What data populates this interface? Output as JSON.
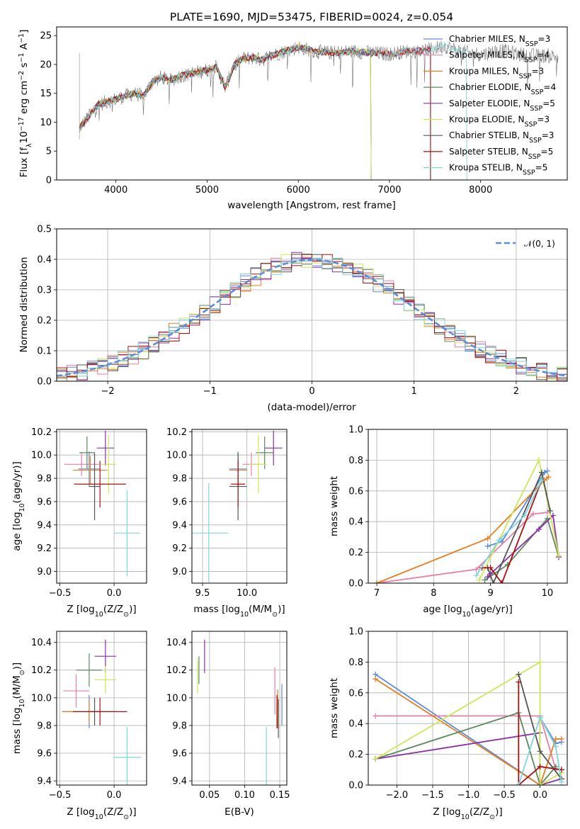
{
  "title": "PLATE=1690, MJD=53475, FIBERID=0024, z=0.054",
  "colors": {
    "chabrier_miles": "#5b8ddb",
    "salpeter_miles": "#e87fa8",
    "kroupa_miles": "#e67e22",
    "chabrier_elodie": "#5d8a5e",
    "salpeter_elodie": "#8e2fa8",
    "kroupa_elodie": "#cfe55a",
    "chabrier_stelib": "#555555",
    "salpeter_stelib": "#aa1111",
    "kroupa_stelib": "#7ed6dc",
    "normal_curve": "#5b8ddb"
  },
  "chart_data": [
    {
      "id": "spectrum",
      "type": "line",
      "xlabel": "wavelength [Angstrom, rest frame]",
      "ylabel": "Flux [f",
      "ylabel_sub": "λ",
      "ylabel_rest": "10",
      "ylabel_sup": "−17",
      "ylabel_unit": " erg cm",
      "ylabel_sup2": "−2",
      "ylabel_unit2": " s",
      "ylabel_sup3": "−1",
      "ylabel_unit3": " A",
      "ylabel_sup4": "−1",
      "ylabel_end": "]",
      "xlim": [
        3350,
        8950
      ],
      "ylim": [
        0,
        26.5
      ],
      "xticks": [
        "4000",
        "5000",
        "6000",
        "7000",
        "8000"
      ],
      "xtick_values": [
        4000,
        5000,
        6000,
        7000,
        8000
      ],
      "yticks": [
        "0",
        "5",
        "10",
        "15",
        "20",
        "25"
      ],
      "ytick_values": [
        0,
        5,
        10,
        15,
        20,
        25
      ],
      "grid": false,
      "legend_position": "right",
      "continuum": {
        "x": [
          3600,
          3700,
          3800,
          3900,
          4000,
          4100,
          4200,
          4300,
          4400,
          4500,
          4600,
          4700,
          4800,
          4900,
          5000,
          5100,
          5200,
          5300,
          5400,
          5500,
          5600,
          5700,
          5800,
          5900,
          6000,
          6200,
          6400,
          6600,
          6800,
          7000,
          7200,
          7400,
          7600,
          7800,
          8000,
          8200,
          8400,
          8600,
          8800
        ],
        "y": [
          9,
          11,
          13,
          13.5,
          14,
          14.5,
          15,
          14.5,
          17,
          17.8,
          17.2,
          18,
          18.3,
          18.7,
          19,
          19.5,
          16,
          20,
          21,
          21.2,
          20.8,
          21.5,
          22,
          22.5,
          23,
          22.2,
          22,
          22.3,
          22,
          21.8,
          22.3,
          22.4,
          23.2,
          22.2,
          21.7,
          22.5,
          21.8,
          21.5,
          21.5
        ]
      },
      "series": [
        {
          "name": "Chabrier MILES, N",
          "sub": "SSP",
          "suffix": "=3",
          "color_key": "chabrier_miles",
          "x_end": 7450
        },
        {
          "name": "Salpeter MILES, N",
          "sub": "SSP",
          "suffix": "=4",
          "color_key": "salpeter_miles",
          "x_end": 7450
        },
        {
          "name": "Kroupa MILES, N",
          "sub": "SSP",
          "suffix": "=3",
          "color_key": "kroupa_miles",
          "x_end": 7450
        },
        {
          "name": "Chabrier ELODIE, N",
          "sub": "SSP",
          "suffix": "=4",
          "color_key": "chabrier_elodie",
          "x_end": 6800
        },
        {
          "name": "Salpeter ELODIE, N",
          "sub": "SSP",
          "suffix": "=5",
          "color_key": "salpeter_elodie",
          "x_end": 6800
        },
        {
          "name": "Kroupa ELODIE, N",
          "sub": "SSP",
          "suffix": "=3",
          "color_key": "kroupa_elodie",
          "x_end": 6800
        },
        {
          "name": "Chabrier STELIB, N",
          "sub": "SSP",
          "suffix": "=3",
          "color_key": "chabrier_stelib",
          "x_end": 7450
        },
        {
          "name": "Salpeter STELIB, N",
          "sub": "SSP",
          "suffix": "=5",
          "color_key": "salpeter_stelib",
          "x_end": 7450
        },
        {
          "name": "Kroupa STELIB, N",
          "sub": "SSP",
          "suffix": "=5",
          "color_key": "kroupa_stelib",
          "x_end": 7850
        }
      ]
    },
    {
      "id": "residuals",
      "type": "histogram",
      "xlabel": "(data-model)/error",
      "ylabel": "Normed distribution",
      "xlim": [
        -2.5,
        2.5
      ],
      "ylim": [
        0,
        0.5
      ],
      "xticks": [
        "−2",
        "−1",
        "0",
        "1",
        "2"
      ],
      "xtick_values": [
        -2,
        -1,
        0,
        1,
        2
      ],
      "yticks": [
        "0.0",
        "0.1",
        "0.2",
        "0.3",
        "0.4",
        "0.5"
      ],
      "ytick_values": [
        0,
        0.1,
        0.2,
        0.3,
        0.4,
        0.5
      ],
      "grid": true,
      "legend_position": "top-right",
      "legend_label": "𝒩(0, 1)",
      "bin_width": 0.1,
      "bin_start": -2.5
    },
    {
      "id": "age_vs_Z",
      "type": "errorbar",
      "xlabel": "Z [log",
      "xlabel_sub": "10",
      "xlabel_rest": "(Z/Z",
      "xlabel_sub2": "⊙",
      "xlabel_end": ")]",
      "ylabel": "age  [log",
      "ylabel_sub": "10",
      "ylabel_rest": "(age/yr)]",
      "xlim": [
        -0.53,
        0.3
      ],
      "ylim": [
        8.9,
        10.22
      ],
      "xticks": [
        "−0.5",
        "0.0"
      ],
      "xtick_values": [
        -0.5,
        0.0
      ],
      "yticks": [
        "9.0",
        "9.2",
        "9.4",
        "9.6",
        "9.8",
        "10.0",
        "10.2"
      ],
      "ytick_values": [
        9.0,
        9.2,
        9.4,
        9.6,
        9.8,
        10.0,
        10.2
      ],
      "grid": true,
      "points": [
        {
          "color_key": "chabrier_miles",
          "x": -0.23,
          "y": 9.88,
          "xerr": 0.1,
          "yerr": 0.15
        },
        {
          "color_key": "salpeter_miles",
          "x": -0.3,
          "y": 9.92,
          "xerr": 0.16,
          "yerr": 0.1
        },
        {
          "color_key": "kroupa_miles",
          "x": -0.22,
          "y": 9.87,
          "xerr": 0.16,
          "yerr": 0.12
        },
        {
          "color_key": "chabrier_elodie",
          "x": -0.25,
          "y": 10.02,
          "xerr": 0.07,
          "yerr": 0.14
        },
        {
          "color_key": "salpeter_elodie",
          "x": -0.08,
          "y": 10.06,
          "xerr": 0.08,
          "yerr": 0.15
        },
        {
          "color_key": "kroupa_elodie",
          "x": -0.05,
          "y": 9.92,
          "xerr": 0.07,
          "yerr": 0.25
        },
        {
          "color_key": "chabrier_stelib",
          "x": -0.18,
          "y": 9.73,
          "xerr": 0.05,
          "yerr": 0.29
        },
        {
          "color_key": "salpeter_stelib",
          "x": -0.13,
          "y": 9.75,
          "xerr": 0.24,
          "yerr": 0.2
        },
        {
          "color_key": "kroupa_stelib",
          "x": 0.12,
          "y": 9.33,
          "xerr": 0.12,
          "yerr": 0.37
        }
      ]
    },
    {
      "id": "age_vs_mass",
      "type": "errorbar",
      "xlabel": "mass [log",
      "xlabel_sub": "10",
      "xlabel_rest": "(M/M",
      "xlabel_sub2": "⊙",
      "xlabel_end": ")]",
      "xlim": [
        9.38,
        10.45
      ],
      "ylim": [
        8.9,
        10.22
      ],
      "xticks": [
        "9.5",
        "10.0"
      ],
      "xtick_values": [
        9.5,
        10.0
      ],
      "yticks": [
        "9.0",
        "9.2",
        "9.4",
        "9.6",
        "9.8",
        "10.0",
        "10.2"
      ],
      "ytick_values": [
        9.0,
        9.2,
        9.4,
        9.6,
        9.8,
        10.0,
        10.2
      ],
      "grid": true,
      "points": [
        {
          "color_key": "chabrier_miles",
          "x": 9.9,
          "y": 9.88,
          "xerr": 0.1,
          "yerr": 0.15
        },
        {
          "color_key": "salpeter_miles",
          "x": 10.05,
          "y": 9.92,
          "xerr": 0.1,
          "yerr": 0.1
        },
        {
          "color_key": "kroupa_miles",
          "x": 9.9,
          "y": 9.87,
          "xerr": 0.1,
          "yerr": 0.12
        },
        {
          "color_key": "chabrier_elodie",
          "x": 10.2,
          "y": 10.02,
          "xerr": 0.1,
          "yerr": 0.14
        },
        {
          "color_key": "salpeter_elodie",
          "x": 10.3,
          "y": 10.06,
          "xerr": 0.1,
          "yerr": 0.15
        },
        {
          "color_key": "kroupa_elodie",
          "x": 10.13,
          "y": 9.92,
          "xerr": 0.1,
          "yerr": 0.25
        },
        {
          "color_key": "chabrier_stelib",
          "x": 9.9,
          "y": 9.73,
          "xerr": 0.1,
          "yerr": 0.29
        },
        {
          "color_key": "salpeter_stelib",
          "x": 9.9,
          "y": 9.75,
          "xerr": 0.08,
          "yerr": 0.2
        },
        {
          "color_key": "kroupa_stelib",
          "x": 9.57,
          "y": 9.33,
          "xerr": 0.22,
          "yerr": 0.43
        }
      ]
    },
    {
      "id": "weight_vs_age",
      "type": "line",
      "xlabel": "age  [log",
      "xlabel_sub": "10",
      "xlabel_rest": "(age/yr)]",
      "ylabel": "mass weight",
      "xlim": [
        6.85,
        10.35
      ],
      "ylim": [
        0,
        1.0
      ],
      "xticks": [
        "7",
        "8",
        "9",
        "10"
      ],
      "xtick_values": [
        7,
        8,
        9,
        10
      ],
      "yticks": [
        "0.0",
        "0.2",
        "0.4",
        "0.6",
        "0.8",
        "1.0"
      ],
      "ytick_values": [
        0,
        0.2,
        0.4,
        0.6,
        0.8,
        1.0
      ],
      "grid": true,
      "series": [
        {
          "color_key": "chabrier_miles",
          "x": [
            8.95,
            9.2,
            9.95,
            10.0
          ],
          "y": [
            0.24,
            0.27,
            0.72,
            0.73
          ]
        },
        {
          "color_key": "salpeter_miles",
          "x": [
            7.0,
            8.75,
            9.75,
            10.0
          ],
          "y": [
            0.0,
            0.09,
            0.45,
            0.46
          ]
        },
        {
          "color_key": "kroupa_miles",
          "x": [
            7.0,
            8.95,
            9.95,
            10.02
          ],
          "y": [
            0.0,
            0.29,
            0.67,
            0.69
          ]
        },
        {
          "color_key": "chabrier_elodie",
          "x": [
            8.9,
            9.3,
            10.0,
            10.2
          ],
          "y": [
            0.02,
            0.12,
            0.42,
            0.17
          ]
        },
        {
          "color_key": "salpeter_elodie",
          "x": [
            8.95,
            9.0,
            9.85,
            10.1,
            10.2
          ],
          "y": [
            0.04,
            0.06,
            0.35,
            0.44,
            0.17
          ]
        },
        {
          "color_key": "kroupa_elodie",
          "x": [
            8.8,
            9.85,
            10.2
          ],
          "y": [
            0.02,
            0.8,
            0.18
          ]
        },
        {
          "color_key": "chabrier_stelib",
          "x": [
            8.95,
            9.05,
            9.9,
            10.05
          ],
          "y": [
            0.1,
            0.0,
            0.72,
            0.47
          ]
        },
        {
          "color_key": "salpeter_stelib",
          "x": [
            8.85,
            9.0,
            9.2,
            9.9
          ],
          "y": [
            0.1,
            0.1,
            0.0,
            0.67
          ]
        },
        {
          "color_key": "kroupa_stelib",
          "x": [
            8.75,
            9.15,
            9.6,
            9.9
          ],
          "y": [
            0.05,
            0.28,
            0.44,
            0.67
          ]
        }
      ]
    },
    {
      "id": "mass_vs_Z",
      "type": "errorbar",
      "xlabel": "Z [log",
      "xlabel_sub": "10",
      "xlabel_rest": "(Z/Z",
      "xlabel_sub2": "⊙",
      "xlabel_end": ")]",
      "ylabel": "mass [log",
      "ylabel_sub": "10",
      "ylabel_rest": "(M/M",
      "ylabel_sub2": "⊙",
      "ylabel_end": ")]",
      "xlim": [
        -0.53,
        0.3
      ],
      "ylim": [
        9.37,
        10.48
      ],
      "xticks": [
        "−0.5",
        "0.0"
      ],
      "xtick_values": [
        -0.5,
        0.0
      ],
      "yticks": [
        "9.4",
        "9.6",
        "9.8",
        "10.0",
        "10.2",
        "10.4"
      ],
      "ytick_values": [
        9.4,
        9.6,
        9.8,
        10.0,
        10.2,
        10.4
      ],
      "grid": true,
      "points": [
        {
          "color_key": "chabrier_miles",
          "x": -0.23,
          "y": 9.9,
          "xerr": 0.25,
          "yerr": 0.12
        },
        {
          "color_key": "salpeter_miles",
          "x": -0.35,
          "y": 10.05,
          "xerr": 0.12,
          "yerr": 0.12
        },
        {
          "color_key": "kroupa_miles",
          "x": -0.23,
          "y": 9.9,
          "xerr": 0.25,
          "yerr": 0.08
        },
        {
          "color_key": "chabrier_elodie",
          "x": -0.23,
          "y": 10.2,
          "xerr": 0.12,
          "yerr": 0.12
        },
        {
          "color_key": "salpeter_elodie",
          "x": -0.08,
          "y": 10.3,
          "xerr": 0.1,
          "yerr": 0.12
        },
        {
          "color_key": "kroupa_elodie",
          "x": -0.08,
          "y": 10.13,
          "xerr": 0.1,
          "yerr": 0.1
        },
        {
          "color_key": "chabrier_stelib",
          "x": -0.18,
          "y": 9.9,
          "xerr": 0.06,
          "yerr": 0.1
        },
        {
          "color_key": "salpeter_stelib",
          "x": -0.13,
          "y": 9.9,
          "xerr": 0.25,
          "yerr": 0.1
        },
        {
          "color_key": "kroupa_stelib",
          "x": 0.12,
          "y": 9.57,
          "xerr": 0.13,
          "yerr": 0.22
        }
      ]
    },
    {
      "id": "mass_vs_ebv",
      "type": "errorbar",
      "xlabel": "E(B-V)",
      "xlim": [
        0.025,
        0.16
      ],
      "ylim": [
        9.37,
        10.48
      ],
      "xticks": [
        "0.05",
        "0.10",
        "0.15"
      ],
      "xtick_values": [
        0.05,
        0.1,
        0.15
      ],
      "yticks": [
        "9.4",
        "9.6",
        "9.8",
        "10.0",
        "10.2",
        "10.4"
      ],
      "ytick_values": [
        9.4,
        9.6,
        9.8,
        10.0,
        10.2,
        10.4
      ],
      "grid": true,
      "points": [
        {
          "color_key": "chabrier_miles",
          "x": 0.153,
          "y": 9.95,
          "xerr": 0.0,
          "yerr": 0.15
        },
        {
          "color_key": "salpeter_miles",
          "x": 0.143,
          "y": 10.05,
          "xerr": 0.0,
          "yerr": 0.17
        },
        {
          "color_key": "kroupa_miles",
          "x": 0.147,
          "y": 9.92,
          "xerr": 0.0,
          "yerr": 0.14
        },
        {
          "color_key": "chabrier_elodie",
          "x": 0.035,
          "y": 10.2,
          "xerr": 0.0,
          "yerr": 0.1
        },
        {
          "color_key": "salpeter_elodie",
          "x": 0.043,
          "y": 10.3,
          "xerr": 0.0,
          "yerr": 0.12
        },
        {
          "color_key": "kroupa_elodie",
          "x": 0.033,
          "y": 10.15,
          "xerr": 0.0,
          "yerr": 0.12
        },
        {
          "color_key": "chabrier_stelib",
          "x": 0.148,
          "y": 9.85,
          "xerr": 0.0,
          "yerr": 0.14
        },
        {
          "color_key": "salpeter_stelib",
          "x": 0.146,
          "y": 9.9,
          "xerr": 0.0,
          "yerr": 0.12
        },
        {
          "color_key": "kroupa_stelib",
          "x": 0.131,
          "y": 9.57,
          "xerr": 0.0,
          "yerr": 0.22
        }
      ]
    },
    {
      "id": "weight_vs_Z",
      "type": "line",
      "xlabel": "Z [log",
      "xlabel_sub": "10",
      "xlabel_rest": "(Z/Z",
      "xlabel_sub2": "⊙",
      "xlabel_end": ")]",
      "ylabel": "mass weight",
      "xlim": [
        -2.4,
        0.38
      ],
      "ylim": [
        0,
        1.0
      ],
      "xticks": [
        "−2.0",
        "−1.5",
        "−1.0",
        "−0.5",
        "0.0"
      ],
      "xtick_values": [
        -2.0,
        -1.5,
        -1.0,
        -0.5,
        0.0
      ],
      "yticks": [
        "0.0",
        "0.2",
        "0.4",
        "0.6",
        "0.8",
        "1.0"
      ],
      "ytick_values": [
        0,
        0.2,
        0.4,
        0.6,
        0.8,
        1.0
      ],
      "grid": true,
      "series": [
        {
          "color_key": "chabrier_miles",
          "x": [
            -2.3,
            0.0,
            0.0,
            0.22,
            0.3
          ],
          "y": [
            0.72,
            0.0,
            0.44,
            0.27,
            0.28
          ]
        },
        {
          "color_key": "salpeter_miles",
          "x": [
            -2.3,
            0.0,
            0.22,
            0.3
          ],
          "y": [
            0.45,
            0.45,
            0.1,
            0.1
          ]
        },
        {
          "color_key": "kroupa_miles",
          "x": [
            -2.3,
            0.0,
            0.22,
            0.3
          ],
          "y": [
            0.69,
            0.0,
            0.3,
            0.3
          ]
        },
        {
          "color_key": "chabrier_elodie",
          "x": [
            -2.3,
            -0.3,
            0.0,
            0.22
          ],
          "y": [
            0.17,
            0.47,
            0.0,
            0.12
          ]
        },
        {
          "color_key": "salpeter_elodie",
          "x": [
            -2.3,
            0.0,
            0.0,
            0.3
          ],
          "y": [
            0.17,
            0.34,
            0.0,
            0.04
          ]
        },
        {
          "color_key": "kroupa_elodie",
          "x": [
            -2.3,
            0.0,
            0.0,
            0.3
          ],
          "y": [
            0.17,
            0.8,
            0.0,
            0.08
          ]
        },
        {
          "color_key": "chabrier_stelib",
          "x": [
            -0.3,
            0.0,
            0.3
          ],
          "y": [
            0.72,
            0.22,
            0.04
          ]
        },
        {
          "color_key": "salpeter_stelib",
          "x": [
            -0.3,
            -0.3,
            0.0,
            0.3
          ],
          "y": [
            0.67,
            0.0,
            0.12,
            0.1
          ]
        },
        {
          "color_key": "kroupa_stelib",
          "x": [
            -0.3,
            0.0,
            0.22,
            0.3
          ],
          "y": [
            0.0,
            0.44,
            0.25,
            0.02
          ]
        }
      ]
    }
  ]
}
